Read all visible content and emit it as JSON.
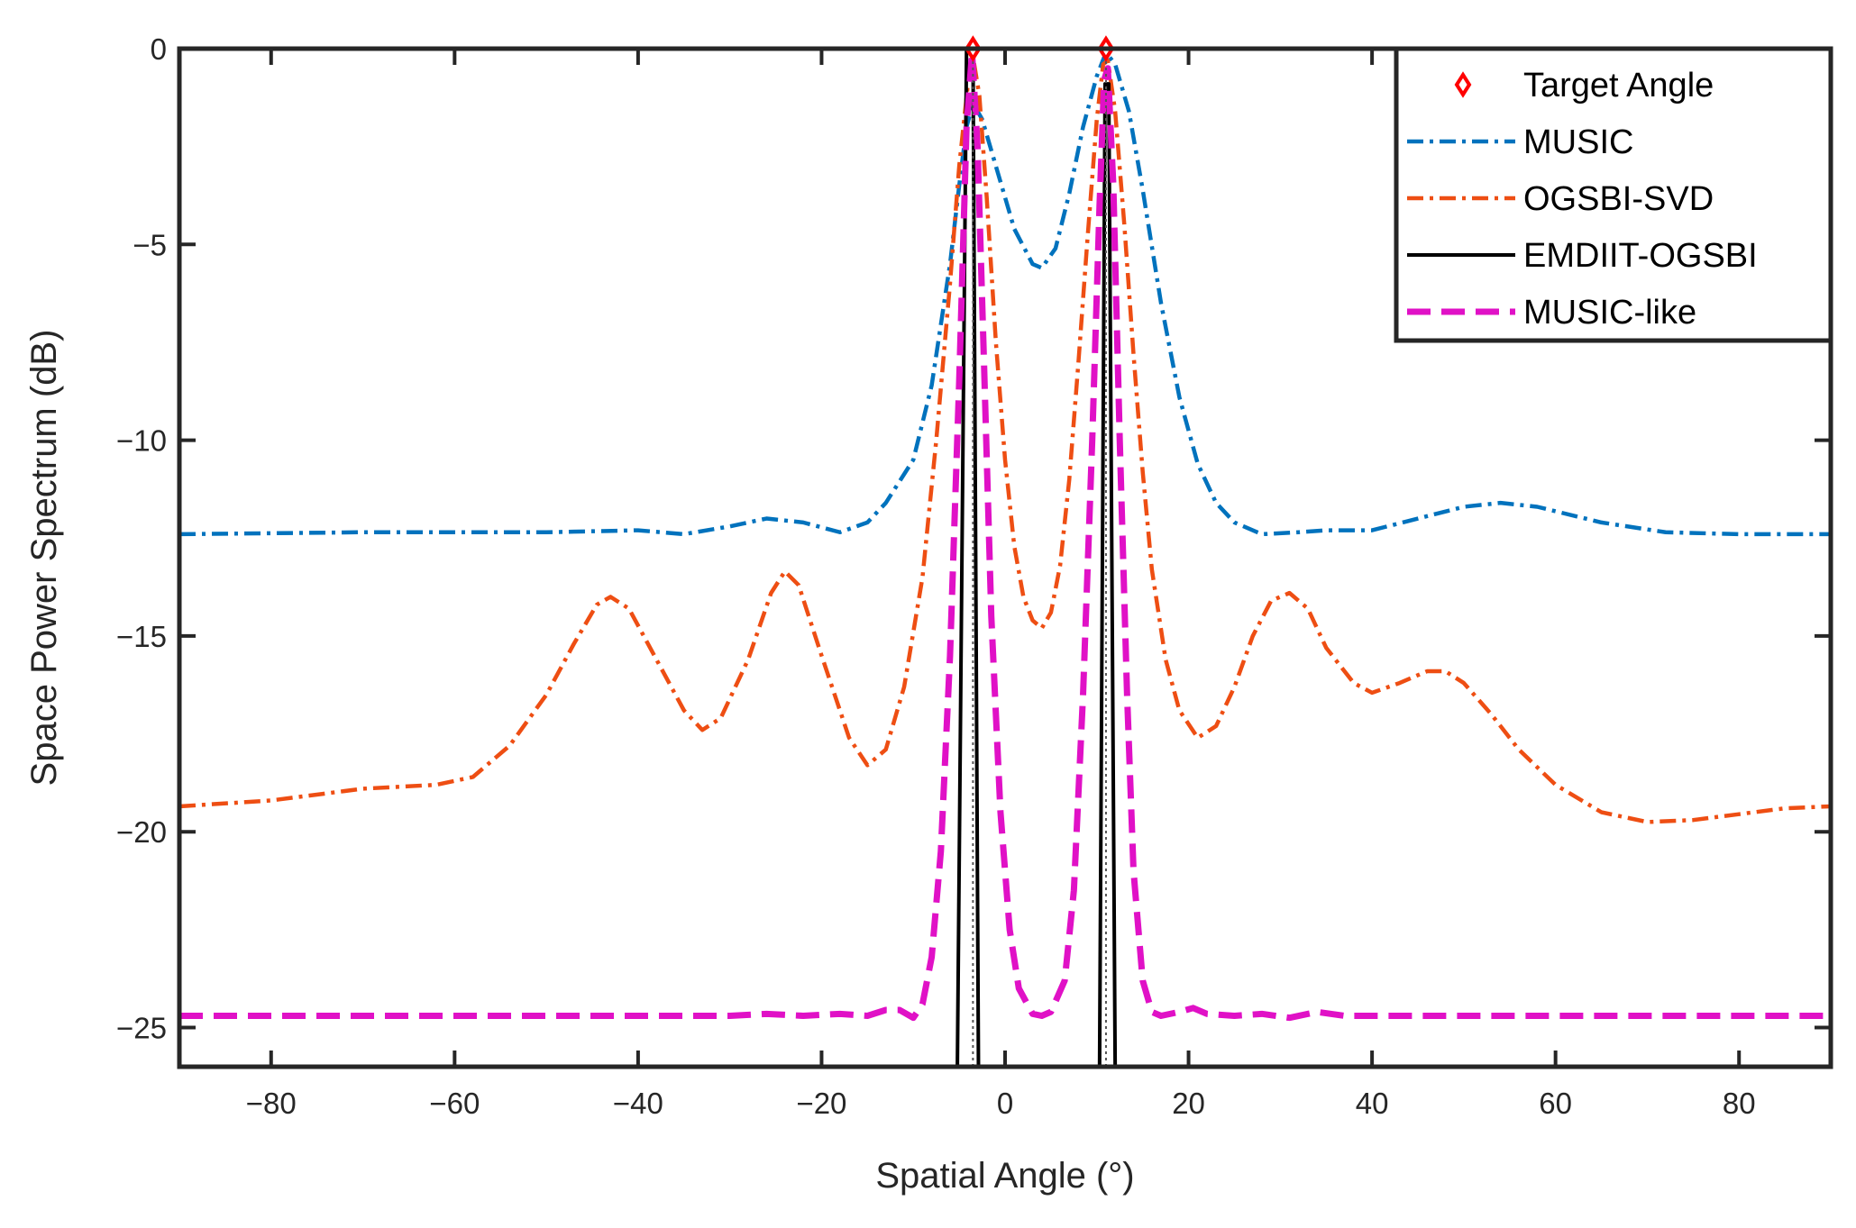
{
  "chart_data": {
    "type": "line",
    "title": "",
    "xlabel": "Spatial Angle (°)",
    "ylabel": "Space Power Spectrum (dB)",
    "xlim": [
      -90,
      90
    ],
    "ylim": [
      -26,
      0
    ],
    "xticks": [
      -80,
      -60,
      -40,
      -20,
      0,
      20,
      40,
      60,
      80
    ],
    "yticks": [
      0,
      -5,
      -10,
      -15,
      -20,
      -25
    ],
    "xtick_labels": [
      "−80",
      "−60",
      "−40",
      "−20",
      "0",
      "20",
      "40",
      "60",
      "80"
    ],
    "ytick_labels": [
      "0",
      "−5",
      "−10",
      "−15",
      "−20",
      "−25"
    ],
    "target_angles": [
      -3.5,
      11
    ],
    "target_label": "Target Angle",
    "legend_position": "top-right",
    "series": [
      {
        "name": "MUSIC",
        "color": "#0072BD",
        "style": "dashdot",
        "points": [
          [
            -90,
            -12.4
          ],
          [
            -70,
            -12.35
          ],
          [
            -50,
            -12.35
          ],
          [
            -40,
            -12.3
          ],
          [
            -35,
            -12.4
          ],
          [
            -30,
            -12.2
          ],
          [
            -26,
            -12.0
          ],
          [
            -22,
            -12.1
          ],
          [
            -18,
            -12.35
          ],
          [
            -15,
            -12.1
          ],
          [
            -13,
            -11.6
          ],
          [
            -10,
            -10.5
          ],
          [
            -8,
            -8.6
          ],
          [
            -6,
            -5.5
          ],
          [
            -5,
            -3.5
          ],
          [
            -4.2,
            -2.0
          ],
          [
            -3.5,
            -1.4
          ],
          [
            -2.5,
            -1.8
          ],
          [
            -1,
            -3.0
          ],
          [
            1,
            -4.6
          ],
          [
            3,
            -5.5
          ],
          [
            4,
            -5.6
          ],
          [
            5.5,
            -5.1
          ],
          [
            7,
            -3.7
          ],
          [
            8.5,
            -2.0
          ],
          [
            10,
            -0.7
          ],
          [
            11,
            -0.1
          ],
          [
            12,
            -0.4
          ],
          [
            13.5,
            -1.6
          ],
          [
            15,
            -3.6
          ],
          [
            17,
            -6.5
          ],
          [
            19,
            -8.9
          ],
          [
            21,
            -10.6
          ],
          [
            23,
            -11.6
          ],
          [
            25,
            -12.1
          ],
          [
            28,
            -12.4
          ],
          [
            32,
            -12.35
          ],
          [
            35,
            -12.3
          ],
          [
            40,
            -12.3
          ],
          [
            45,
            -12.0
          ],
          [
            50,
            -11.7
          ],
          [
            54,
            -11.6
          ],
          [
            58,
            -11.7
          ],
          [
            65,
            -12.1
          ],
          [
            72,
            -12.35
          ],
          [
            80,
            -12.4
          ],
          [
            90,
            -12.4
          ]
        ]
      },
      {
        "name": "OGSBI-SVD",
        "color": "#EE4E13",
        "style": "dashdot",
        "points": [
          [
            -90,
            -19.35
          ],
          [
            -80,
            -19.2
          ],
          [
            -70,
            -18.9
          ],
          [
            -62,
            -18.8
          ],
          [
            -58,
            -18.6
          ],
          [
            -54,
            -17.8
          ],
          [
            -50,
            -16.5
          ],
          [
            -47,
            -15.2
          ],
          [
            -44.5,
            -14.2
          ],
          [
            -43,
            -14.0
          ],
          [
            -41,
            -14.3
          ],
          [
            -38,
            -15.6
          ],
          [
            -35,
            -16.9
          ],
          [
            -33,
            -17.4
          ],
          [
            -31,
            -17.1
          ],
          [
            -28,
            -15.6
          ],
          [
            -25.5,
            -13.9
          ],
          [
            -24,
            -13.35
          ],
          [
            -22.5,
            -13.7
          ],
          [
            -20,
            -15.5
          ],
          [
            -17,
            -17.6
          ],
          [
            -15,
            -18.3
          ],
          [
            -13,
            -17.9
          ],
          [
            -11,
            -16.3
          ],
          [
            -9,
            -13.5
          ],
          [
            -7.5,
            -10.0
          ],
          [
            -6,
            -6.0
          ],
          [
            -5,
            -3.0
          ],
          [
            -4,
            -0.8
          ],
          [
            -3.5,
            -0.2
          ],
          [
            -2.8,
            -1.2
          ],
          [
            -2,
            -3.8
          ],
          [
            -1,
            -7.5
          ],
          [
            0,
            -10.5
          ],
          [
            1,
            -12.7
          ],
          [
            2,
            -14.0
          ],
          [
            3,
            -14.6
          ],
          [
            4,
            -14.8
          ],
          [
            5,
            -14.4
          ],
          [
            6,
            -13.2
          ],
          [
            7,
            -11.0
          ],
          [
            8,
            -8.0
          ],
          [
            9,
            -4.8
          ],
          [
            10,
            -1.8
          ],
          [
            10.7,
            -0.4
          ],
          [
            11.2,
            -0.3
          ],
          [
            12,
            -1.6
          ],
          [
            13,
            -4.5
          ],
          [
            14,
            -7.8
          ],
          [
            15,
            -10.8
          ],
          [
            16,
            -13.3
          ],
          [
            17.5,
            -15.6
          ],
          [
            19,
            -16.9
          ],
          [
            21,
            -17.6
          ],
          [
            23,
            -17.3
          ],
          [
            25,
            -16.3
          ],
          [
            27,
            -15.0
          ],
          [
            29,
            -14.1
          ],
          [
            31,
            -13.9
          ],
          [
            33,
            -14.3
          ],
          [
            35,
            -15.3
          ],
          [
            38,
            -16.2
          ],
          [
            40,
            -16.45
          ],
          [
            43,
            -16.2
          ],
          [
            46,
            -15.9
          ],
          [
            48,
            -15.9
          ],
          [
            50,
            -16.2
          ],
          [
            53,
            -17.0
          ],
          [
            56,
            -17.9
          ],
          [
            60,
            -18.8
          ],
          [
            65,
            -19.5
          ],
          [
            70,
            -19.75
          ],
          [
            75,
            -19.7
          ],
          [
            80,
            -19.55
          ],
          [
            85,
            -19.4
          ],
          [
            90,
            -19.35
          ]
        ]
      },
      {
        "name": "EMDIIT-OGSBI",
        "color": "#000000",
        "style": "solid",
        "points": [
          [
            -5.2,
            -26
          ],
          [
            -4.2,
            0
          ],
          [
            -3.5,
            0
          ],
          [
            -2.9,
            -26
          ],
          [
            10.3,
            -26
          ],
          [
            10.9,
            -0.9
          ],
          [
            11.3,
            -0.9
          ],
          [
            12,
            -26
          ]
        ]
      },
      {
        "name": "MUSIC-like",
        "color": "#E011C6",
        "style": "dashed",
        "points": [
          [
            -90,
            -24.7
          ],
          [
            -60,
            -24.7
          ],
          [
            -40,
            -24.7
          ],
          [
            -30,
            -24.7
          ],
          [
            -26,
            -24.65
          ],
          [
            -22,
            -24.7
          ],
          [
            -18,
            -24.65
          ],
          [
            -15,
            -24.7
          ],
          [
            -13,
            -24.55
          ],
          [
            -11.5,
            -24.55
          ],
          [
            -10,
            -24.75
          ],
          [
            -9,
            -24.4
          ],
          [
            -8,
            -23.2
          ],
          [
            -7,
            -20.5
          ],
          [
            -6,
            -15.5
          ],
          [
            -5,
            -8.5
          ],
          [
            -4.2,
            -2.0
          ],
          [
            -3.6,
            -0.1
          ],
          [
            -3.0,
            -2.5
          ],
          [
            -2.3,
            -8.0
          ],
          [
            -1.5,
            -14.5
          ],
          [
            -0.5,
            -19.5
          ],
          [
            0.5,
            -22.5
          ],
          [
            1.5,
            -24.0
          ],
          [
            3,
            -24.65
          ],
          [
            4,
            -24.7
          ],
          [
            5,
            -24.6
          ],
          [
            6.5,
            -23.8
          ],
          [
            7.5,
            -21.5
          ],
          [
            8.5,
            -16.5
          ],
          [
            9.5,
            -10.0
          ],
          [
            10.3,
            -4.0
          ],
          [
            10.8,
            -0.8
          ],
          [
            11.2,
            -0.5
          ],
          [
            11.8,
            -3.5
          ],
          [
            12.5,
            -10.0
          ],
          [
            13.3,
            -16.5
          ],
          [
            14,
            -21.0
          ],
          [
            15,
            -23.8
          ],
          [
            16,
            -24.6
          ],
          [
            17,
            -24.7
          ],
          [
            19,
            -24.6
          ],
          [
            20.5,
            -24.5
          ],
          [
            22,
            -24.65
          ],
          [
            25,
            -24.7
          ],
          [
            28,
            -24.65
          ],
          [
            31,
            -24.75
          ],
          [
            34,
            -24.6
          ],
          [
            37,
            -24.7
          ],
          [
            40,
            -24.7
          ],
          [
            50,
            -24.7
          ],
          [
            70,
            -24.7
          ],
          [
            90,
            -24.7
          ]
        ]
      }
    ]
  }
}
